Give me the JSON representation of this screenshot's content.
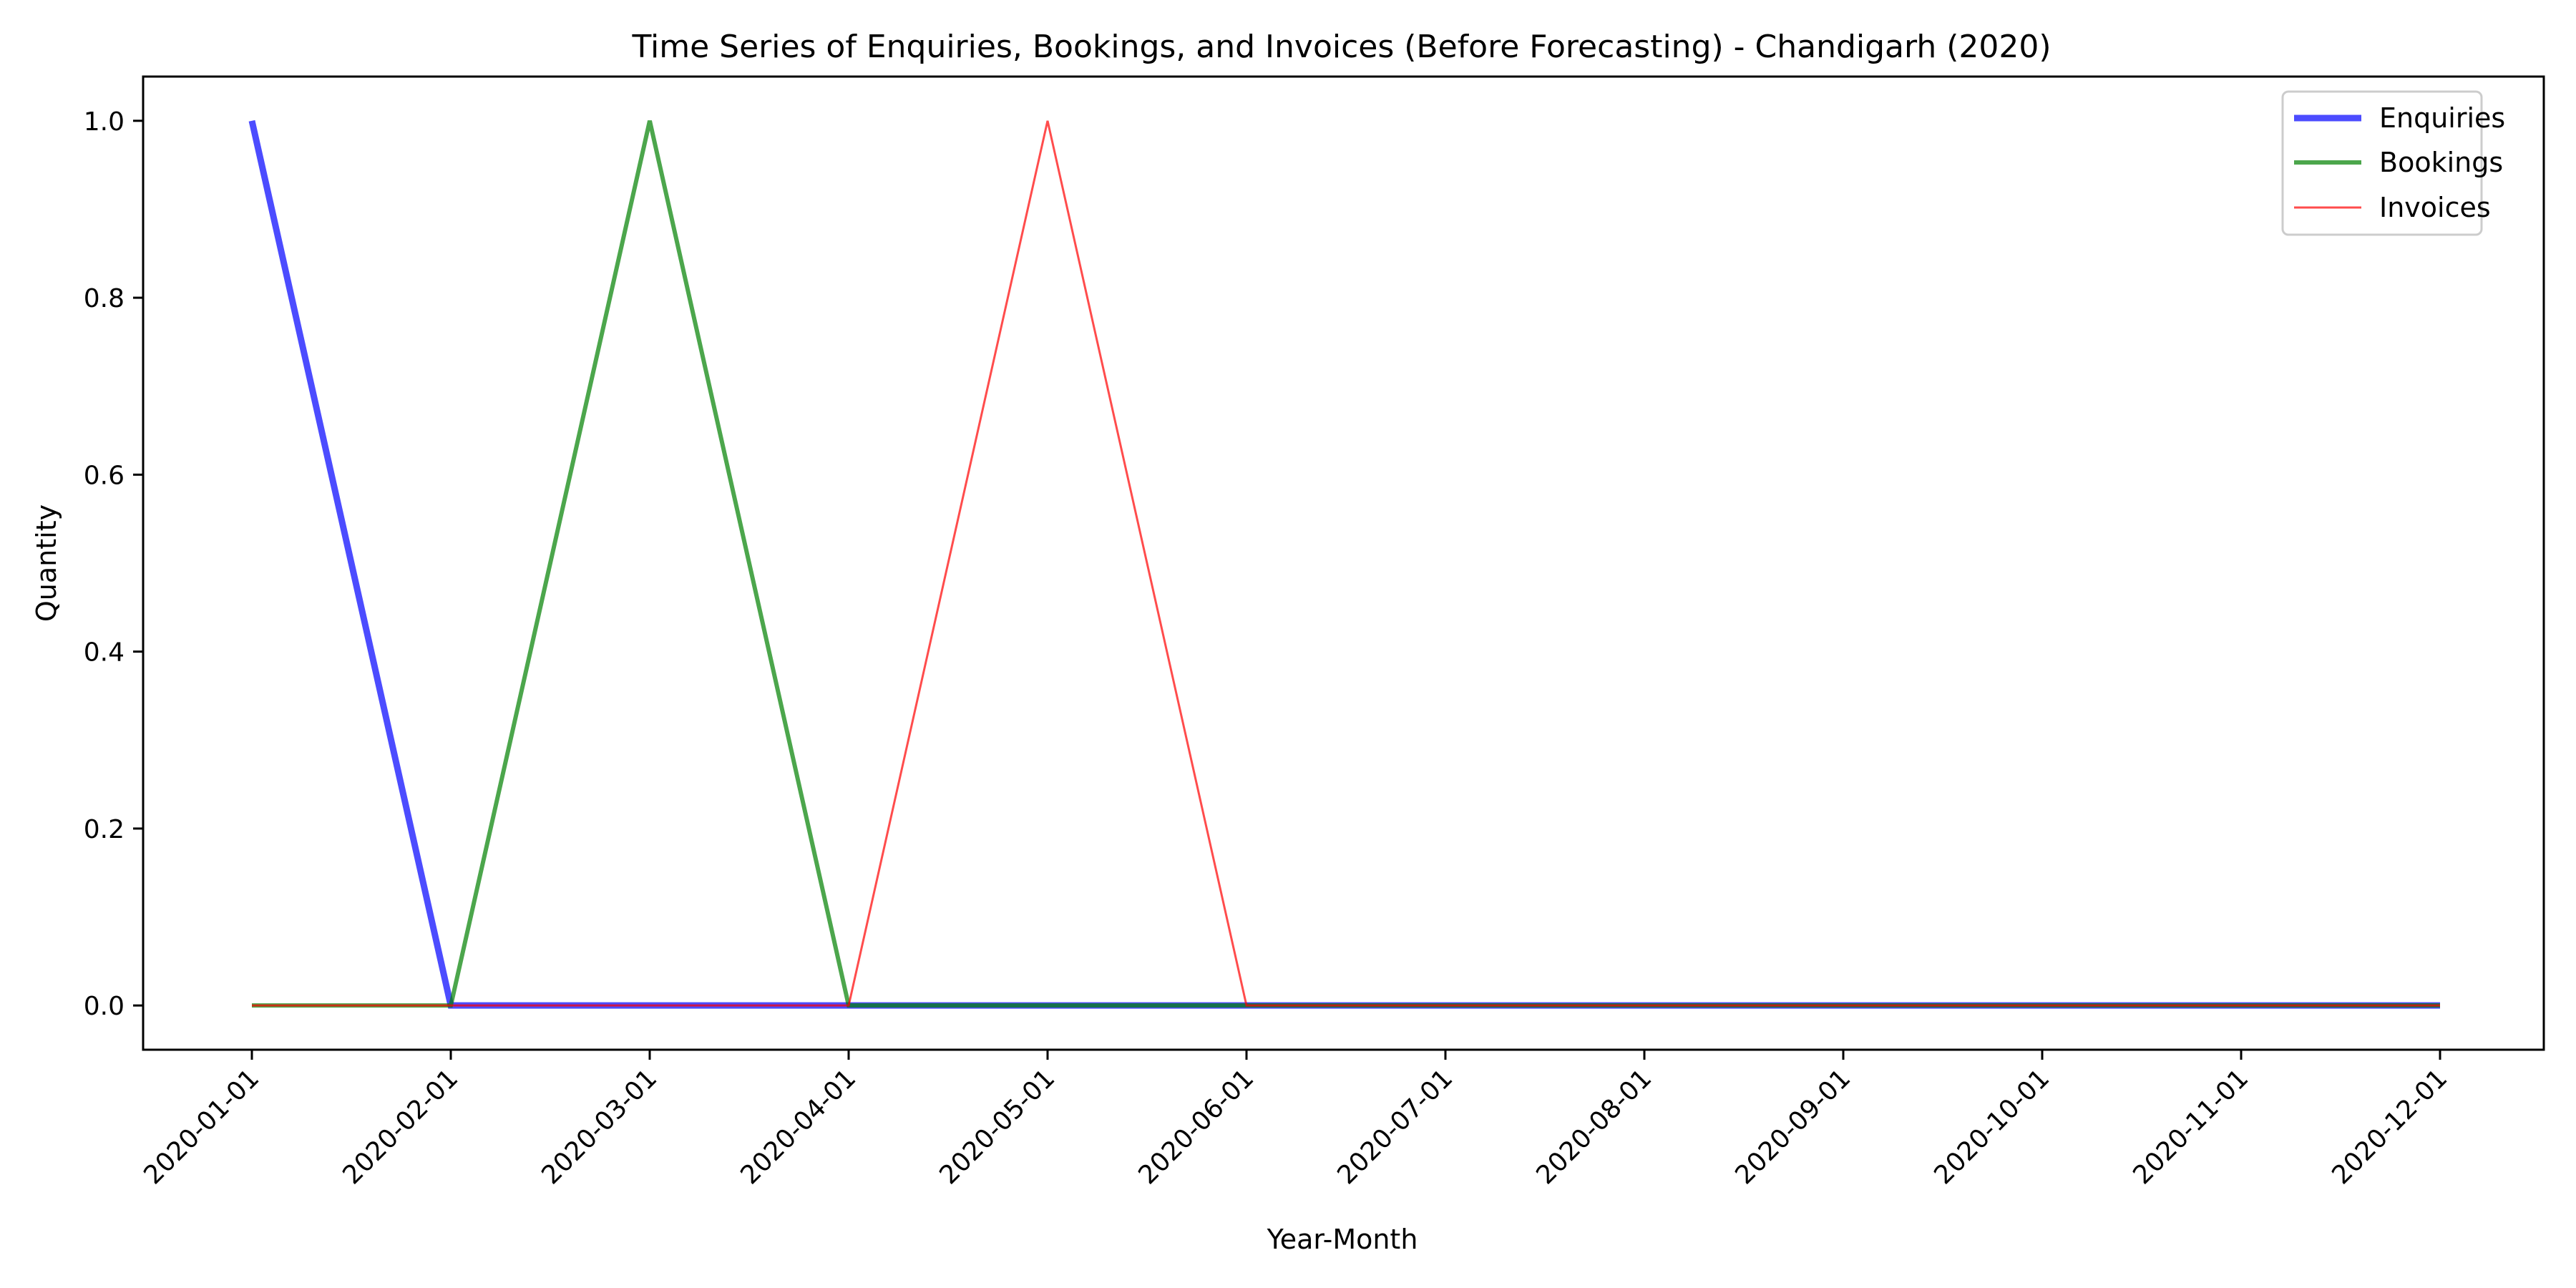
{
  "chart_data": {
    "type": "line",
    "title": "Time Series of Enquiries, Bookings, and Invoices (Before Forecasting) - Chandigarh (2020)",
    "xlabel": "Year-Month",
    "ylabel": "Quantity",
    "x": [
      "2020-01-01",
      "2020-02-01",
      "2020-03-01",
      "2020-04-01",
      "2020-05-01",
      "2020-06-01",
      "2020-07-01",
      "2020-08-01",
      "2020-09-01",
      "2020-10-01",
      "2020-11-01",
      "2020-12-01"
    ],
    "ylim": [
      -0.05,
      1.05
    ],
    "yticks": [
      "0.0",
      "0.2",
      "0.4",
      "0.6",
      "0.8",
      "1.0"
    ],
    "grid": false,
    "legend_position": "top-right",
    "series": [
      {
        "name": "Enquiries",
        "color": "#0000ff",
        "values": [
          1,
          0,
          0,
          0,
          0,
          0,
          0,
          0,
          0,
          0,
          0,
          0
        ]
      },
      {
        "name": "Bookings",
        "color": "#008000",
        "values": [
          0,
          0,
          1,
          0,
          0,
          0,
          0,
          0,
          0,
          0,
          0,
          0
        ]
      },
      {
        "name": "Invoices",
        "color": "#ff0000",
        "values": [
          0,
          0,
          0,
          0,
          1,
          0,
          0,
          0,
          0,
          0,
          0,
          0
        ]
      }
    ]
  }
}
